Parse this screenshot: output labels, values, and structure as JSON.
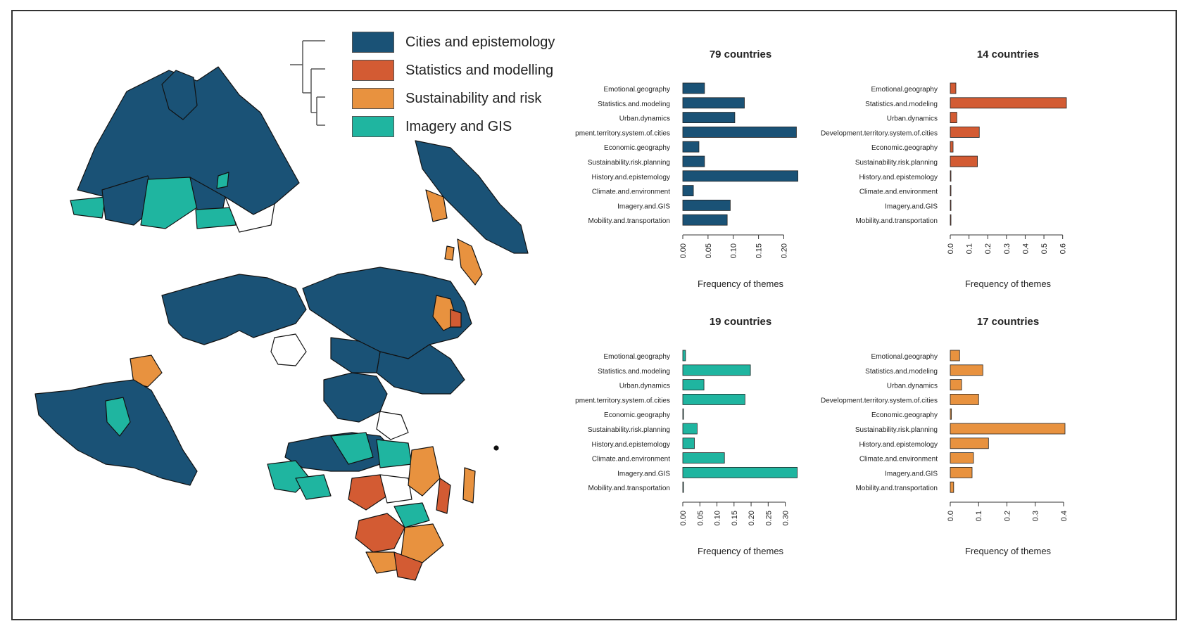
{
  "legend": {
    "items": [
      {
        "label": "Cities and epistemology",
        "color": "#1a5276"
      },
      {
        "label": "Statistics and modelling",
        "color": "#d35b33"
      },
      {
        "label": "Sustainability and risk",
        "color": "#e8923f"
      },
      {
        "label": "Imagery and GIS",
        "color": "#1fb5a0"
      }
    ]
  },
  "map": {
    "colors": {
      "cities": "#1a5276",
      "statistics": "#d35b33",
      "sustainability": "#e8923f",
      "imagery": "#1fb5a0",
      "none": "#ffffff"
    }
  },
  "chart_data": [
    {
      "type": "bar",
      "orientation": "horizontal",
      "title": "79 countries",
      "xlabel": "Frequency of themes",
      "color": "#1a5276",
      "categories": [
        "Emotional.geography",
        "Statistics.and.modeling",
        "Urban.dynamics",
        "pment.territory.system.of.cities",
        "Economic.geography",
        "Sustainability.risk.planning",
        "History.and.epistemology",
        "Climate.and.environment",
        "Imagery.and.GIS",
        "Mobility.and.transportation"
      ],
      "values": [
        0.043,
        0.122,
        0.103,
        0.225,
        0.032,
        0.043,
        0.228,
        0.021,
        0.094,
        0.088
      ],
      "xlim": [
        0,
        0.23
      ],
      "xticks": [
        "0.00",
        "0.05",
        "0.10",
        "0.15",
        "0.20"
      ],
      "xtick_values": [
        0,
        0.05,
        0.1,
        0.15,
        0.2
      ]
    },
    {
      "type": "bar",
      "orientation": "horizontal",
      "title": "14 countries",
      "xlabel": "Frequency of themes",
      "color": "#d35b33",
      "categories": [
        "Emotional.geography",
        "Statistics.and.modeling",
        "Urban.dynamics",
        "Development.territory.system.of.cities",
        "Economic.geography",
        "Sustainability.risk.planning",
        "History.and.epistemology",
        "Climate.and.environment",
        "Imagery.and.GIS",
        "Mobility.and.transportation"
      ],
      "values": [
        0.03,
        0.62,
        0.035,
        0.155,
        0.015,
        0.145,
        0.003,
        0.003,
        0.003,
        0.003
      ],
      "xlim": [
        0,
        0.62
      ],
      "xticks": [
        "0.0",
        "0.1",
        "0.2",
        "0.3",
        "0.4",
        "0.5",
        "0.6"
      ],
      "xtick_values": [
        0,
        0.1,
        0.2,
        0.3,
        0.4,
        0.5,
        0.6
      ]
    },
    {
      "type": "bar",
      "orientation": "horizontal",
      "title": "19 countries",
      "xlabel": "Frequency of themes",
      "color": "#1fb5a0",
      "categories": [
        "Emotional.geography",
        "Statistics.and.modeling",
        "Urban.dynamics",
        "pment.territory.system.of.cities",
        "Economic.geography",
        "Sustainability.risk.planning",
        "History.and.epistemology",
        "Climate.and.environment",
        "Imagery.and.GIS",
        "Mobility.and.transportation"
      ],
      "values": [
        0.008,
        0.198,
        0.062,
        0.182,
        0.002,
        0.042,
        0.034,
        0.122,
        0.335,
        0.002
      ],
      "xlim": [
        0,
        0.34
      ],
      "xticks": [
        "0.00",
        "0.05",
        "0.10",
        "0.15",
        "0.20",
        "0.25",
        "0.30"
      ],
      "xtick_values": [
        0,
        0.05,
        0.1,
        0.15,
        0.2,
        0.25,
        0.3
      ]
    },
    {
      "type": "bar",
      "orientation": "horizontal",
      "title": "17 countries",
      "xlabel": "Frequency of themes",
      "color": "#e8923f",
      "categories": [
        "Emotional.geography",
        "Statistics.and.modeling",
        "Urban.dynamics",
        "Development.territory.system.of.cities",
        "Economic.geography",
        "Sustainability.risk.planning",
        "History.and.epistemology",
        "Climate.and.environment",
        "Imagery.and.GIS",
        "Mobility.and.transportation"
      ],
      "values": [
        0.033,
        0.115,
        0.04,
        0.1,
        0.004,
        0.405,
        0.135,
        0.082,
        0.077,
        0.012
      ],
      "xlim": [
        0,
        0.41
      ],
      "xticks": [
        "0.0",
        "0.1",
        "0.2",
        "0.3",
        "0.4"
      ],
      "xtick_values": [
        0,
        0.1,
        0.2,
        0.3,
        0.4
      ]
    }
  ]
}
